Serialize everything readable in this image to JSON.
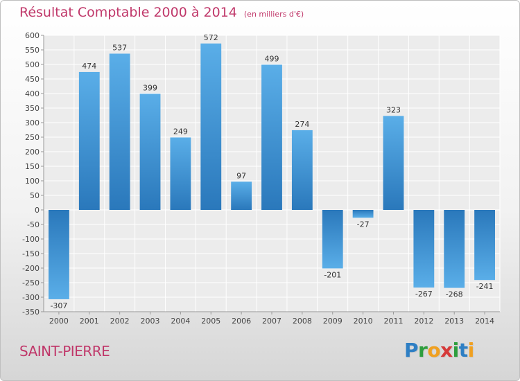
{
  "chart_data": {
    "type": "bar",
    "title": "Résultat Comptable 2000 à 2014",
    "subtitle": "(en milliers d'€)",
    "categories": [
      "2000",
      "2001",
      "2002",
      "2003",
      "2004",
      "2005",
      "2006",
      "2007",
      "2008",
      "2009",
      "2010",
      "2011",
      "2012",
      "2013",
      "2014"
    ],
    "values": [
      -307,
      474,
      537,
      399,
      249,
      572,
      97,
      499,
      274,
      -201,
      -27,
      323,
      -267,
      -268,
      -241
    ],
    "ylim": [
      -350,
      600
    ],
    "yticks": [
      600,
      550,
      500,
      450,
      400,
      350,
      300,
      250,
      200,
      150,
      100,
      50,
      0,
      -50,
      -100,
      -150,
      -200,
      -250,
      -300,
      -350
    ],
    "grid": true,
    "bar_color": "#3a8fd0",
    "title_color": "#c0386a"
  },
  "footer": {
    "place": "SAINT-PIERRE",
    "logo_letters": [
      {
        "ch": "P",
        "color": "#2e7fc4"
      },
      {
        "ch": "r",
        "color": "#2e9e3e"
      },
      {
        "ch": "o",
        "color": "#f0a020"
      },
      {
        "ch": "x",
        "color": "#d63a3a"
      },
      {
        "ch": "i",
        "color": "#2e9e3e"
      },
      {
        "ch": "t",
        "color": "#2e7fc4"
      },
      {
        "ch": "i",
        "color": "#f0a020"
      }
    ]
  }
}
